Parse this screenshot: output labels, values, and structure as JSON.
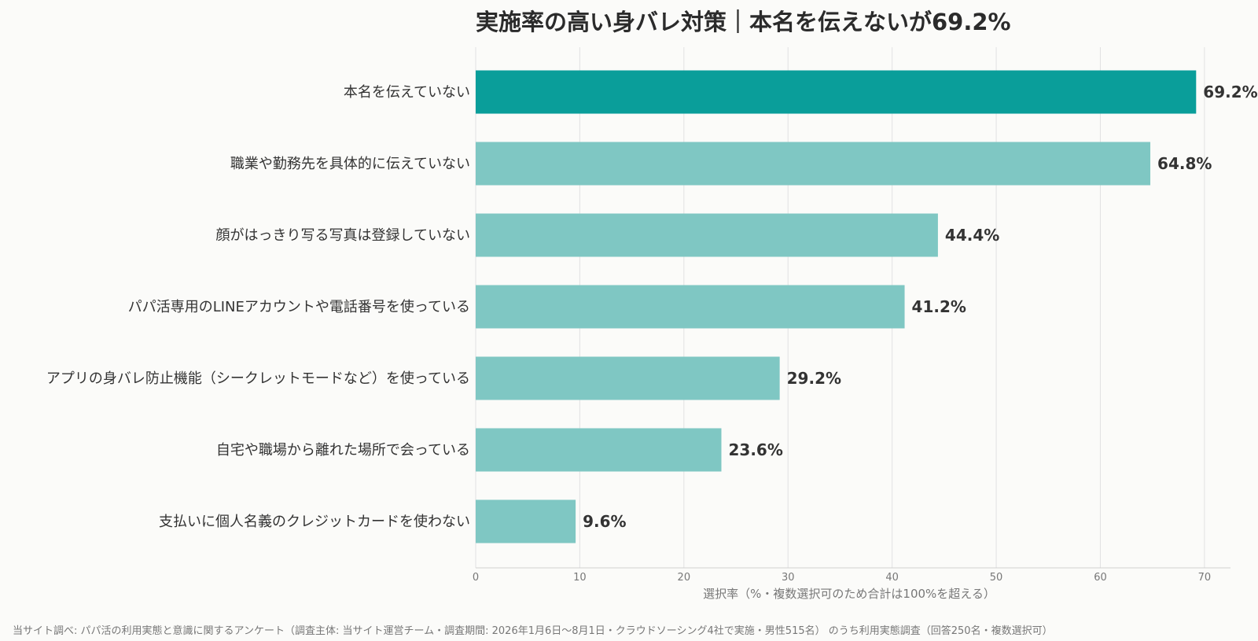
{
  "chart_data": {
    "type": "bar",
    "orientation": "horizontal",
    "title": "実施率の高い身バレ対策｜本名を伝えないが69.2%",
    "categories": [
      "本名を伝えていない",
      "職業や勤務先を具体的に伝えていない",
      "顔がはっきり写る写真は登録していない",
      "パパ活専用のLINEアカウントや電話番号を使っている",
      "アプリの身バレ防止機能（シークレットモードなど）を使っている",
      "自宅や職場から離れた場所で会っている",
      "支払いに個人名義のクレジットカードを使わない"
    ],
    "values": [
      69.2,
      64.8,
      44.4,
      41.2,
      29.2,
      23.6,
      9.6
    ],
    "value_labels": [
      "69.2%",
      "64.8%",
      "44.4%",
      "41.2%",
      "29.2%",
      "23.6%",
      "9.6%"
    ],
    "xlabel": "選択率（%・複数選択可のため合計は100%を超える）",
    "ylabel": "",
    "xlim": [
      0,
      72.5
    ],
    "xticks": [
      0,
      10,
      20,
      30,
      40,
      50,
      60,
      70
    ],
    "xtick_labels": [
      "0",
      "10",
      "20",
      "30",
      "40",
      "50",
      "60",
      "70"
    ],
    "grid": "vertical",
    "highlight_index": 0,
    "colors": {
      "highlight": "#0a9e9a",
      "bar": "#7fc7c3",
      "grid": "#e2e2e2",
      "text": "#333333",
      "muted": "#777777"
    },
    "source_note": "当サイト調べ: パパ活の利用実態と意識に関するアンケート（調査主体: 当サイト運営チーム・調査期間: 2026年1月6日〜8月1日・クラウドソーシング4社で実施・男性515名） のうち利用実態調査（回答250名・複数選択可）"
  }
}
